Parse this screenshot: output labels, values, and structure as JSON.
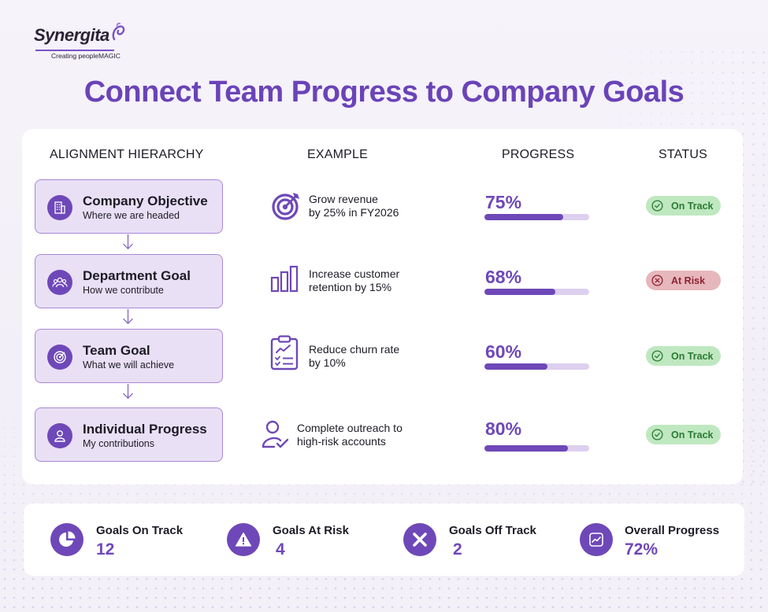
{
  "brand": {
    "name": "Synergita",
    "tagline": "Creating peopleMAGIC"
  },
  "title": "Connect Team Progress to Company Goals",
  "columns": {
    "hierarchy": "ALIGNMENT HIERARCHY",
    "example": "EXAMPLE",
    "progress": "PROGRESS",
    "status": "STATUS"
  },
  "rows": [
    {
      "level": "Company Objective",
      "sub": "Where we are headed",
      "level_icon": "building-icon",
      "example_line1": "Grow revenue",
      "example_line2": "by 25% in FY2026",
      "example_icon": "target-arrow-icon",
      "progress_label": "75%",
      "progress_value": 0.75,
      "status": "On Track",
      "status_kind": "track"
    },
    {
      "level": "Department Goal",
      "sub": "How we contribute",
      "level_icon": "people-group-icon",
      "example_line1": "Increase customer",
      "example_line2": "retention by 15%",
      "example_icon": "bar-chart-icon",
      "progress_label": "68%",
      "progress_value": 0.68,
      "status": "At Risk",
      "status_kind": "risk"
    },
    {
      "level": "Team Goal",
      "sub": "What we will achieve",
      "level_icon": "target-icon",
      "example_line1": "Reduce churn rate",
      "example_line2": "by 10%",
      "example_icon": "clipboard-checklist-icon",
      "progress_label": "60%",
      "progress_value": 0.6,
      "status": "On Track",
      "status_kind": "track"
    },
    {
      "level": "Individual Progress",
      "sub": "My contributions",
      "level_icon": "person-icon",
      "example_line1": "Complete outreach to",
      "example_line2": "high-risk accounts",
      "example_icon": "person-check-icon",
      "progress_label": "80%",
      "progress_value": 0.8,
      "status": "On Track",
      "status_kind": "track"
    }
  ],
  "stats": [
    {
      "label": "Goals On Track",
      "value": "12",
      "icon": "pie-chart-icon"
    },
    {
      "label": "Goals At Risk",
      "value": "4",
      "icon": "warning-triangle-icon"
    },
    {
      "label": "Goals Off Track",
      "value": "2",
      "icon": "x-mark-icon"
    },
    {
      "label": "Overall Progress",
      "value": "72%",
      "icon": "trend-chart-icon"
    }
  ],
  "colors": {
    "accent": "#6e48b8",
    "title": "#6a43b8",
    "on_track_bg": "#bfe8c0",
    "on_track_text": "#2c7a33",
    "at_risk_bg": "#e6b7bd",
    "at_risk_text": "#8e2330"
  }
}
